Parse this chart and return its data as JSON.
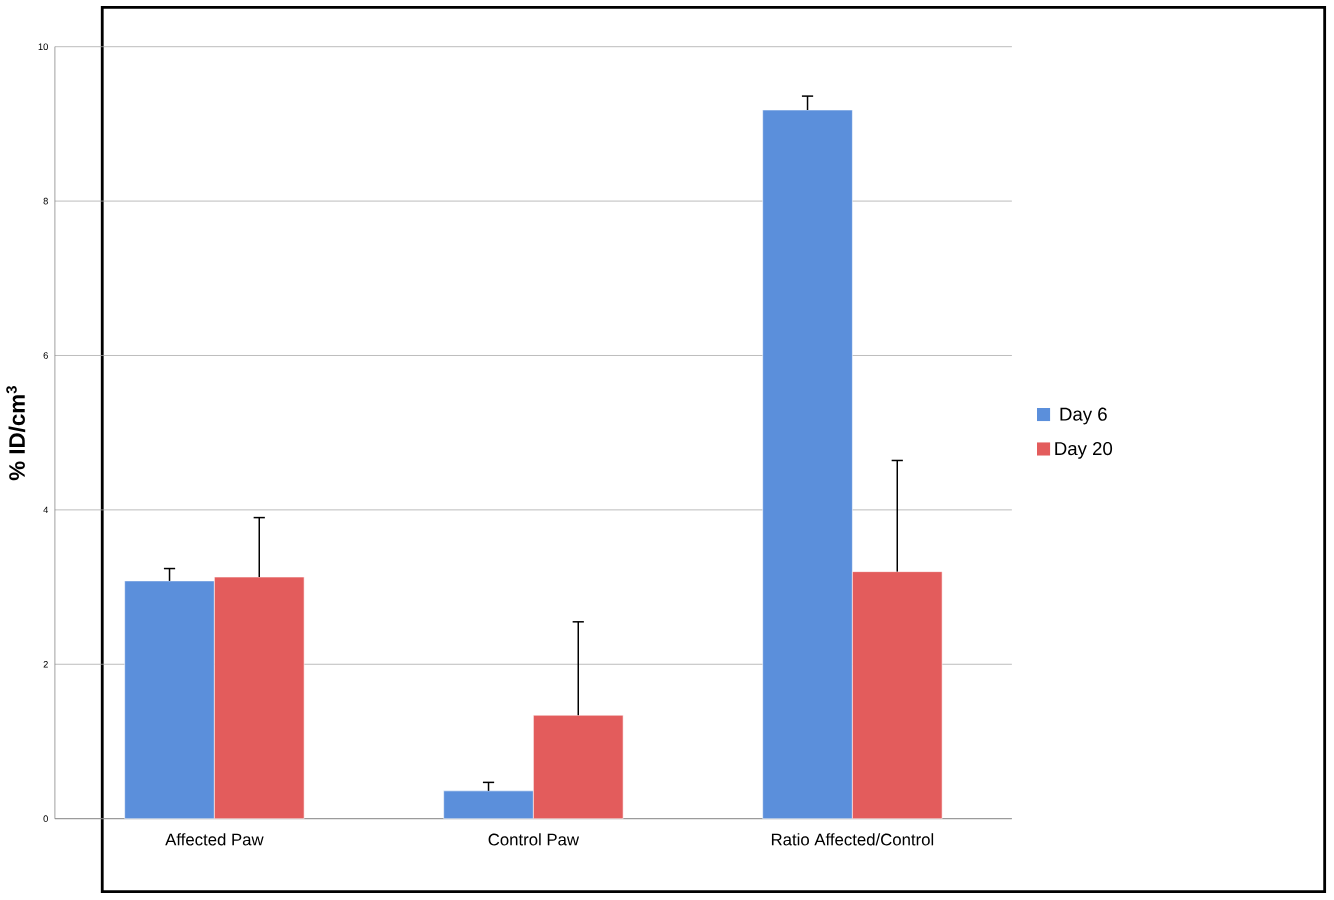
{
  "chart_data": {
    "type": "bar",
    "ylabel": "% ID/cm$^{3}$",
    "categories": [
      "Affected Paw",
      "Control Paw",
      "Ratio Affected/Control"
    ],
    "series": [
      {
        "name": "Day 6",
        "color": "#5b8fdb",
        "values": [
          3.08,
          0.36,
          9.18
        ],
        "errors": [
          [
            3.08,
            3.24
          ],
          [
            0.36,
            0.47
          ],
          [
            9.18,
            9.36
          ]
        ]
      },
      {
        "name": "Day 20",
        "color": "#e35c5c",
        "values": [
          3.13,
          1.34,
          3.2
        ],
        "errors": [
          [
            3.13,
            3.9
          ],
          [
            1.34,
            2.55
          ],
          [
            3.2,
            4.64
          ]
        ]
      }
    ],
    "ylim": [
      0,
      10
    ],
    "yticks": [
      0,
      2,
      4,
      6,
      8,
      10
    ],
    "grid": "y",
    "legend": "right"
  }
}
